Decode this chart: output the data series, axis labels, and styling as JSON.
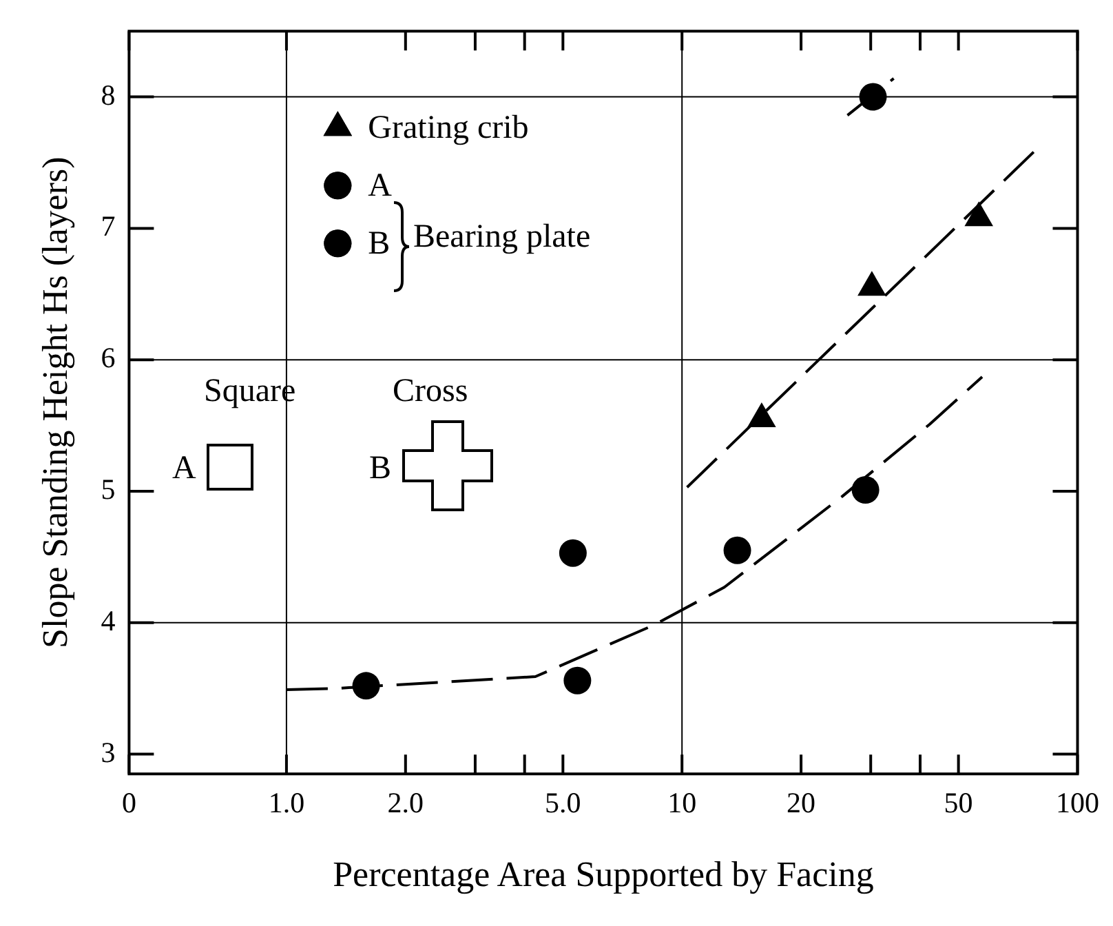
{
  "chart_data": {
    "type": "scatter",
    "xlabel": "Percentage Area Supported by Facing",
    "ylabel": "Slope Standing Height Hs (layers)",
    "log": "x",
    "xlim": [
      0.4,
      100
    ],
    "ylim": [
      2.85,
      8.5
    ],
    "xticks": [
      {
        "value": 0.4,
        "label": "0"
      },
      {
        "value": 1,
        "label": "1.0"
      },
      {
        "value": 2,
        "label": "2.0"
      },
      {
        "value": 3,
        "label": null
      },
      {
        "value": 4,
        "label": null
      },
      {
        "value": 5,
        "label": "5.0"
      },
      10,
      20,
      {
        "value": 30,
        "label": null
      },
      {
        "value": 40,
        "label": null
      },
      50,
      100
    ],
    "yticks": [
      3,
      4,
      5,
      6,
      7,
      8
    ],
    "ref_lines": [
      {
        "axis": "y",
        "value": 4,
        "color": "#000000"
      },
      {
        "axis": "y",
        "value": 6,
        "color": "#000000"
      },
      {
        "axis": "y",
        "value": 8,
        "color": "#000000"
      },
      {
        "axis": "x",
        "value": 1,
        "color": "#000000"
      },
      {
        "axis": "x",
        "value": 10,
        "color": "#000000"
      }
    ],
    "legend": "top left",
    "series": [
      {
        "name": "Grating crib",
        "marker": "triangle",
        "color": "#000000",
        "x": [
          15.9,
          30.2,
          56.3
        ],
        "values": [
          5.55,
          6.55,
          7.08
        ]
      },
      {
        "name": "A",
        "marker": "circle",
        "color": "#000000",
        "x": [
          5.3
        ],
        "values": [
          4.53
        ]
      },
      {
        "name": "B",
        "marker": "circle",
        "color": "#000000",
        "x": [
          1.59,
          5.44,
          13.8,
          29.1,
          30.4
        ],
        "values": [
          3.52,
          3.56,
          4.55,
          5.01,
          8.0
        ]
      },
      {
        "type": "line",
        "line_style": "dashed",
        "marker": "none",
        "color": "#000000",
        "x": [
          1.0,
          1.33,
          4.26,
          8.46,
          12.8,
          25.4,
          42.3,
          57.4
        ],
        "values": [
          3.49,
          3.5,
          3.59,
          3.98,
          4.27,
          4.96,
          5.51,
          5.87
        ]
      },
      {
        "type": "line",
        "line_style": "dashed",
        "marker": "none",
        "color": "#000000",
        "x": [
          10.3,
          79.9
        ],
        "values": [
          5.03,
          7.62
        ]
      },
      {
        "type": "line",
        "line_style": "dashed",
        "marker": "none",
        "color": "#000000",
        "x": [
          26.2,
          34.3
        ],
        "values": [
          7.86,
          8.14
        ]
      }
    ],
    "annotations": [
      "Bearing plate",
      "Square",
      "Cross",
      "A",
      "B"
    ]
  }
}
